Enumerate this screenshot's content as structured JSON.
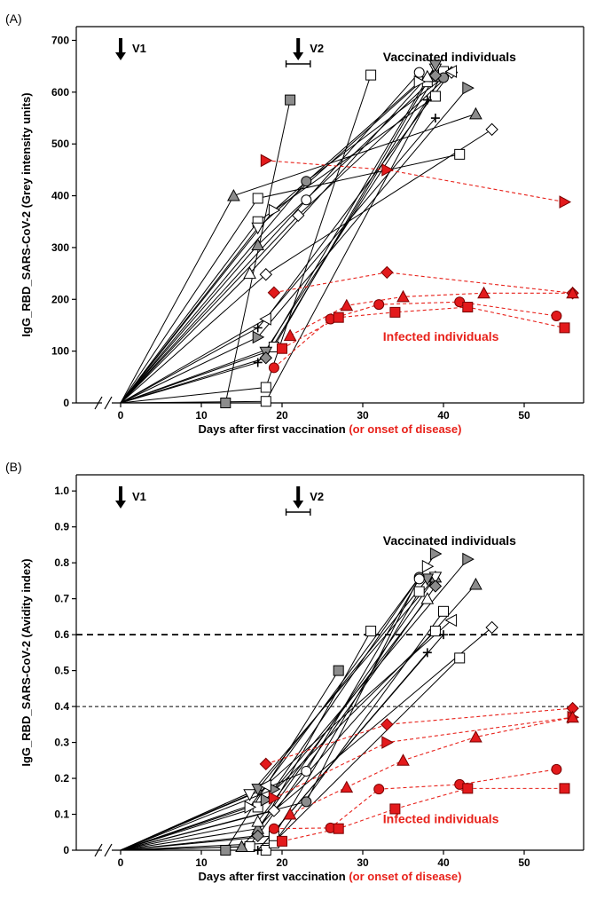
{
  "colors": {
    "vaccinated": "#000000",
    "infected": "#e8211a",
    "infected_fill": "#e31a1c",
    "grey_fill": "#8c8c8c"
  },
  "chart_data": [
    {
      "type": "line",
      "panel_label": "(A)",
      "title": "",
      "xlabel": "Days after first vaccination",
      "xlabel_suffix": "(or onset of disease)",
      "ylabel": "IgG_RBD_SARS-CoV-2 (Grey intensity units)",
      "xlim": [
        0,
        57
      ],
      "ylim": [
        0,
        700
      ],
      "xticks": [
        0,
        10,
        20,
        30,
        40,
        50
      ],
      "yticks": [
        0,
        100,
        200,
        300,
        400,
        500,
        600,
        700
      ],
      "axis_break": true,
      "grid": false,
      "dose_markers": [
        {
          "label": "V1",
          "day": 0
        },
        {
          "label": "V2",
          "day": 22,
          "range": [
            20.5,
            23.5
          ]
        }
      ],
      "annotations": [
        {
          "text": "Vaccinated individuals",
          "group": "vaccinated",
          "x": 32.5,
          "y": 660
        },
        {
          "text": "Infected individuals",
          "group": "infected",
          "x": 32.5,
          "y": 120
        }
      ],
      "series": [
        {
          "group": "vaccinated",
          "marker": "square",
          "fill": "grey",
          "x": [
            0,
            13,
            21
          ],
          "y": [
            0,
            0,
            585
          ]
        },
        {
          "group": "vaccinated",
          "marker": "square",
          "fill": "white",
          "x": [
            0,
            17,
            42
          ],
          "y": [
            0,
            395,
            480
          ]
        },
        {
          "group": "vaccinated",
          "marker": "square",
          "fill": "white",
          "x": [
            0,
            18,
            31
          ],
          "y": [
            0,
            30,
            633
          ]
        },
        {
          "group": "vaccinated",
          "marker": "square",
          "fill": "white",
          "x": [
            0,
            18,
            40
          ],
          "y": [
            0,
            3,
            640
          ]
        },
        {
          "group": "vaccinated",
          "marker": "square",
          "fill": "white",
          "x": [
            0,
            19,
            38
          ],
          "y": [
            0,
            108,
            620
          ]
        },
        {
          "group": "vaccinated",
          "marker": "square",
          "fill": "white",
          "x": [
            0,
            17,
            39
          ],
          "y": [
            0,
            350,
            592
          ]
        },
        {
          "group": "vaccinated",
          "marker": "triangle",
          "fill": "grey",
          "x": [
            0,
            14,
            44
          ],
          "y": [
            0,
            400,
            558
          ]
        },
        {
          "group": "vaccinated",
          "marker": "triangle",
          "fill": "grey",
          "x": [
            0,
            17,
            39
          ],
          "y": [
            0,
            305,
            630
          ]
        },
        {
          "group": "vaccinated",
          "marker": "triangle",
          "fill": "white",
          "x": [
            0,
            16,
            38
          ],
          "y": [
            0,
            250,
            630
          ]
        },
        {
          "group": "vaccinated",
          "marker": "triangle-right",
          "fill": "grey",
          "x": [
            0,
            17,
            43
          ],
          "y": [
            0,
            127,
            608
          ]
        },
        {
          "group": "vaccinated",
          "marker": "triangle-right",
          "fill": "white",
          "x": [
            0,
            19,
            37
          ],
          "y": [
            0,
            372,
            620
          ]
        },
        {
          "group": "vaccinated",
          "marker": "triangle-down",
          "fill": "white",
          "x": [
            0,
            17,
            39
          ],
          "y": [
            0,
            338,
            645
          ]
        },
        {
          "group": "vaccinated",
          "marker": "triangle-down",
          "fill": "grey",
          "x": [
            0,
            18,
            39
          ],
          "y": [
            0,
            98,
            652
          ]
        },
        {
          "group": "vaccinated",
          "marker": "circle",
          "fill": "grey",
          "x": [
            0,
            23,
            40
          ],
          "y": [
            0,
            428,
            628
          ]
        },
        {
          "group": "vaccinated",
          "marker": "circle",
          "fill": "white",
          "x": [
            0,
            23,
            37
          ],
          "y": [
            0,
            392,
            638
          ]
        },
        {
          "group": "vaccinated",
          "marker": "diamond",
          "fill": "white",
          "x": [
            0,
            18,
            46
          ],
          "y": [
            0,
            248,
            528
          ]
        },
        {
          "group": "vaccinated",
          "marker": "diamond",
          "fill": "white",
          "x": [
            0,
            22,
            41
          ],
          "y": [
            0,
            362,
            638
          ]
        },
        {
          "group": "vaccinated",
          "marker": "diamond",
          "fill": "grey",
          "x": [
            0,
            18,
            39
          ],
          "y": [
            0,
            87,
            632
          ]
        },
        {
          "group": "vaccinated",
          "marker": "triangle-left",
          "fill": "white",
          "x": [
            0,
            18,
            41
          ],
          "y": [
            0,
            162,
            640
          ]
        },
        {
          "group": "vaccinated",
          "marker": "plus",
          "fill": "none",
          "x": [
            0,
            17,
            39
          ],
          "y": [
            0,
            145,
            550
          ]
        },
        {
          "group": "vaccinated",
          "marker": "plus",
          "fill": "none",
          "x": [
            0,
            17,
            38
          ],
          "y": [
            0,
            78,
            585
          ]
        },
        {
          "group": "infected",
          "marker": "triangle-right",
          "fill": "red",
          "x": [
            18,
            33,
            55
          ],
          "y": [
            468,
            450,
            388
          ]
        },
        {
          "group": "infected",
          "marker": "diamond",
          "fill": "red",
          "x": [
            19,
            33,
            56
          ],
          "y": [
            213,
            252,
            212
          ]
        },
        {
          "group": "infected",
          "marker": "triangle",
          "fill": "red",
          "x": [
            21,
            28,
            35,
            45,
            56
          ],
          "y": [
            130,
            188,
            205,
            212,
            212
          ]
        },
        {
          "group": "infected",
          "marker": "circle",
          "fill": "red",
          "x": [
            19,
            26,
            32,
            42,
            54
          ],
          "y": [
            68,
            162,
            190,
            195,
            168
          ]
        },
        {
          "group": "infected",
          "marker": "square",
          "fill": "red",
          "x": [
            20,
            27,
            34,
            43,
            55
          ],
          "y": [
            105,
            165,
            175,
            185,
            145
          ]
        }
      ]
    },
    {
      "type": "line",
      "panel_label": "(B)",
      "title": "",
      "xlabel": "Days after first vaccination",
      "xlabel_suffix": "(or onset of disease)",
      "ylabel": "IgG_RBD_SARS-CoV-2 (Avidity index)",
      "xlim": [
        0,
        57
      ],
      "ylim": [
        0,
        1.0
      ],
      "xticks": [
        0,
        10,
        20,
        30,
        40,
        50
      ],
      "yticks": [
        0,
        0.1,
        0.2,
        0.3,
        0.4,
        0.5,
        0.6,
        0.7,
        0.8,
        0.9,
        1.0
      ],
      "axis_break": true,
      "grid": false,
      "reference_lines": [
        0.6,
        0.4
      ],
      "dose_markers": [
        {
          "label": "V1",
          "day": 0
        },
        {
          "label": "V2",
          "day": 22,
          "range": [
            20.5,
            23.5
          ]
        }
      ],
      "annotations": [
        {
          "text": "Vaccinated individuals",
          "group": "vaccinated",
          "x": 32.5,
          "y": 0.85
        },
        {
          "text": "Infected individuals",
          "group": "infected",
          "x": 32.5,
          "y": 0.075
        }
      ],
      "series": [
        {
          "group": "vaccinated",
          "marker": "square",
          "fill": "grey",
          "x": [
            0,
            13,
            27
          ],
          "y": [
            0,
            0,
            0.5
          ]
        },
        {
          "group": "vaccinated",
          "marker": "square",
          "fill": "white",
          "x": [
            0,
            16,
            31
          ],
          "y": [
            0,
            0.01,
            0.61
          ]
        },
        {
          "group": "vaccinated",
          "marker": "square",
          "fill": "white",
          "x": [
            0,
            18,
            42
          ],
          "y": [
            0,
            0.0,
            0.535
          ]
        },
        {
          "group": "vaccinated",
          "marker": "square",
          "fill": "white",
          "x": [
            0,
            19,
            40
          ],
          "y": [
            0,
            0.02,
            0.665
          ]
        },
        {
          "group": "vaccinated",
          "marker": "square",
          "fill": "white",
          "x": [
            0,
            19,
            37
          ],
          "y": [
            0,
            0.04,
            0.72
          ]
        },
        {
          "group": "vaccinated",
          "marker": "square",
          "fill": "white",
          "x": [
            0,
            17,
            39
          ],
          "y": [
            0,
            0.12,
            0.61
          ]
        },
        {
          "group": "vaccinated",
          "marker": "triangle",
          "fill": "grey",
          "x": [
            0,
            15,
            44
          ],
          "y": [
            0,
            0.01,
            0.74
          ]
        },
        {
          "group": "vaccinated",
          "marker": "triangle",
          "fill": "grey",
          "x": [
            0,
            17,
            39
          ],
          "y": [
            0,
            0.06,
            0.76
          ]
        },
        {
          "group": "vaccinated",
          "marker": "triangle",
          "fill": "white",
          "x": [
            0,
            17,
            38
          ],
          "y": [
            0,
            0.08,
            0.7
          ]
        },
        {
          "group": "vaccinated",
          "marker": "triangle-right",
          "fill": "grey",
          "x": [
            0,
            18,
            43
          ],
          "y": [
            0,
            0.14,
            0.81
          ]
        },
        {
          "group": "vaccinated",
          "marker": "triangle-right",
          "fill": "grey",
          "x": [
            0,
            19,
            39
          ],
          "y": [
            0,
            0.17,
            0.825
          ]
        },
        {
          "group": "vaccinated",
          "marker": "triangle-right",
          "fill": "white",
          "x": [
            0,
            16,
            38
          ],
          "y": [
            0,
            0.12,
            0.79
          ]
        },
        {
          "group": "vaccinated",
          "marker": "triangle-down",
          "fill": "white",
          "x": [
            0,
            16,
            39
          ],
          "y": [
            0,
            0.155,
            0.76
          ]
        },
        {
          "group": "vaccinated",
          "marker": "triangle-down",
          "fill": "grey",
          "x": [
            0,
            17,
            38
          ],
          "y": [
            0,
            0.17,
            0.755
          ]
        },
        {
          "group": "vaccinated",
          "marker": "circle",
          "fill": "grey",
          "x": [
            0,
            23,
            37
          ],
          "y": [
            0,
            0.135,
            0.76
          ]
        },
        {
          "group": "vaccinated",
          "marker": "circle",
          "fill": "white",
          "x": [
            0,
            23,
            37
          ],
          "y": [
            0,
            0.22,
            0.755
          ]
        },
        {
          "group": "vaccinated",
          "marker": "diamond",
          "fill": "white",
          "x": [
            0,
            19,
            46
          ],
          "y": [
            0,
            0.11,
            0.62
          ]
        },
        {
          "group": "vaccinated",
          "marker": "diamond",
          "fill": "grey",
          "x": [
            0,
            17,
            39
          ],
          "y": [
            0,
            0.04,
            0.735
          ]
        },
        {
          "group": "vaccinated",
          "marker": "triangle-left",
          "fill": "white",
          "x": [
            0,
            18,
            41
          ],
          "y": [
            0,
            0.18,
            0.64
          ]
        },
        {
          "group": "vaccinated",
          "marker": "plus",
          "fill": "none",
          "x": [
            0,
            17,
            40
          ],
          "y": [
            0,
            0.0,
            0.6
          ]
        },
        {
          "group": "vaccinated",
          "marker": "plus",
          "fill": "none",
          "x": [
            0,
            17,
            38
          ],
          "y": [
            0,
            0.0,
            0.55
          ]
        },
        {
          "group": "infected",
          "marker": "diamond",
          "fill": "red",
          "x": [
            18,
            33,
            56
          ],
          "y": [
            0.24,
            0.35,
            0.395
          ]
        },
        {
          "group": "infected",
          "marker": "triangle-right",
          "fill": "red",
          "x": [
            19,
            33,
            56
          ],
          "y": [
            0.145,
            0.3,
            0.37
          ]
        },
        {
          "group": "infected",
          "marker": "triangle",
          "fill": "red",
          "x": [
            21,
            28,
            35,
            44,
            56
          ],
          "y": [
            0.1,
            0.175,
            0.25,
            0.315,
            0.37
          ]
        },
        {
          "group": "infected",
          "marker": "circle",
          "fill": "red",
          "x": [
            19,
            26,
            32,
            42,
            54
          ],
          "y": [
            0.06,
            0.062,
            0.17,
            0.183,
            0.225
          ]
        },
        {
          "group": "infected",
          "marker": "square",
          "fill": "red",
          "x": [
            20,
            27,
            34,
            43,
            55
          ],
          "y": [
            0.025,
            0.06,
            0.115,
            0.172,
            0.172
          ]
        }
      ]
    }
  ]
}
